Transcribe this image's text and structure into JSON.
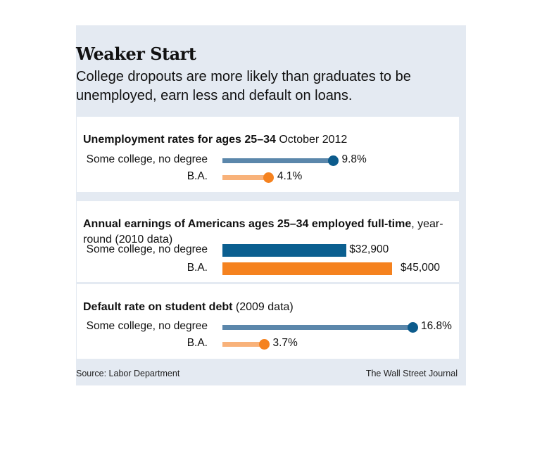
{
  "title": "Weaker Start",
  "subtitle": "College dropouts are more likely than graduates to be unemployed, earn less and default on loans.",
  "source": "Source: Labor Department",
  "credit": "The Wall Street Journal",
  "colors": {
    "some_college_line": "#5b87ab",
    "some_college_dot": "#0c5b8c",
    "some_college_bar": "#0b5f90",
    "ba_line": "#f8b27a",
    "ba_dot": "#f5821f",
    "ba_bar": "#f5821f",
    "panel_bg": "#e4eaf2"
  },
  "chart_data": [
    {
      "type": "dot",
      "title_bold": "Unemployment rates for ages 25–34",
      "title_rest": " October 2012",
      "categories": [
        "Some college, no degree",
        "B.A."
      ],
      "values": [
        9.8,
        4.1
      ],
      "value_labels": [
        "9.8%",
        "4.1%"
      ],
      "xlim": [
        0,
        18
      ]
    },
    {
      "type": "bar",
      "title_bold": "Annual earnings of Americans ages 25–34 employed full-time",
      "title_rest": ", year-round (2010 data)",
      "categories": [
        "Some college, no degree",
        "B.A."
      ],
      "values": [
        32900,
        45000
      ],
      "value_labels": [
        "$32,900",
        "$45,000"
      ],
      "xlim": [
        0,
        45000
      ]
    },
    {
      "type": "dot",
      "title_bold": "Default rate on student debt",
      "title_rest": " (2009 data)",
      "categories": [
        "Some college, no degree",
        "B.A."
      ],
      "values": [
        16.8,
        3.7
      ],
      "value_labels": [
        "16.8%",
        "3.7%"
      ],
      "xlim": [
        0,
        18
      ]
    }
  ]
}
